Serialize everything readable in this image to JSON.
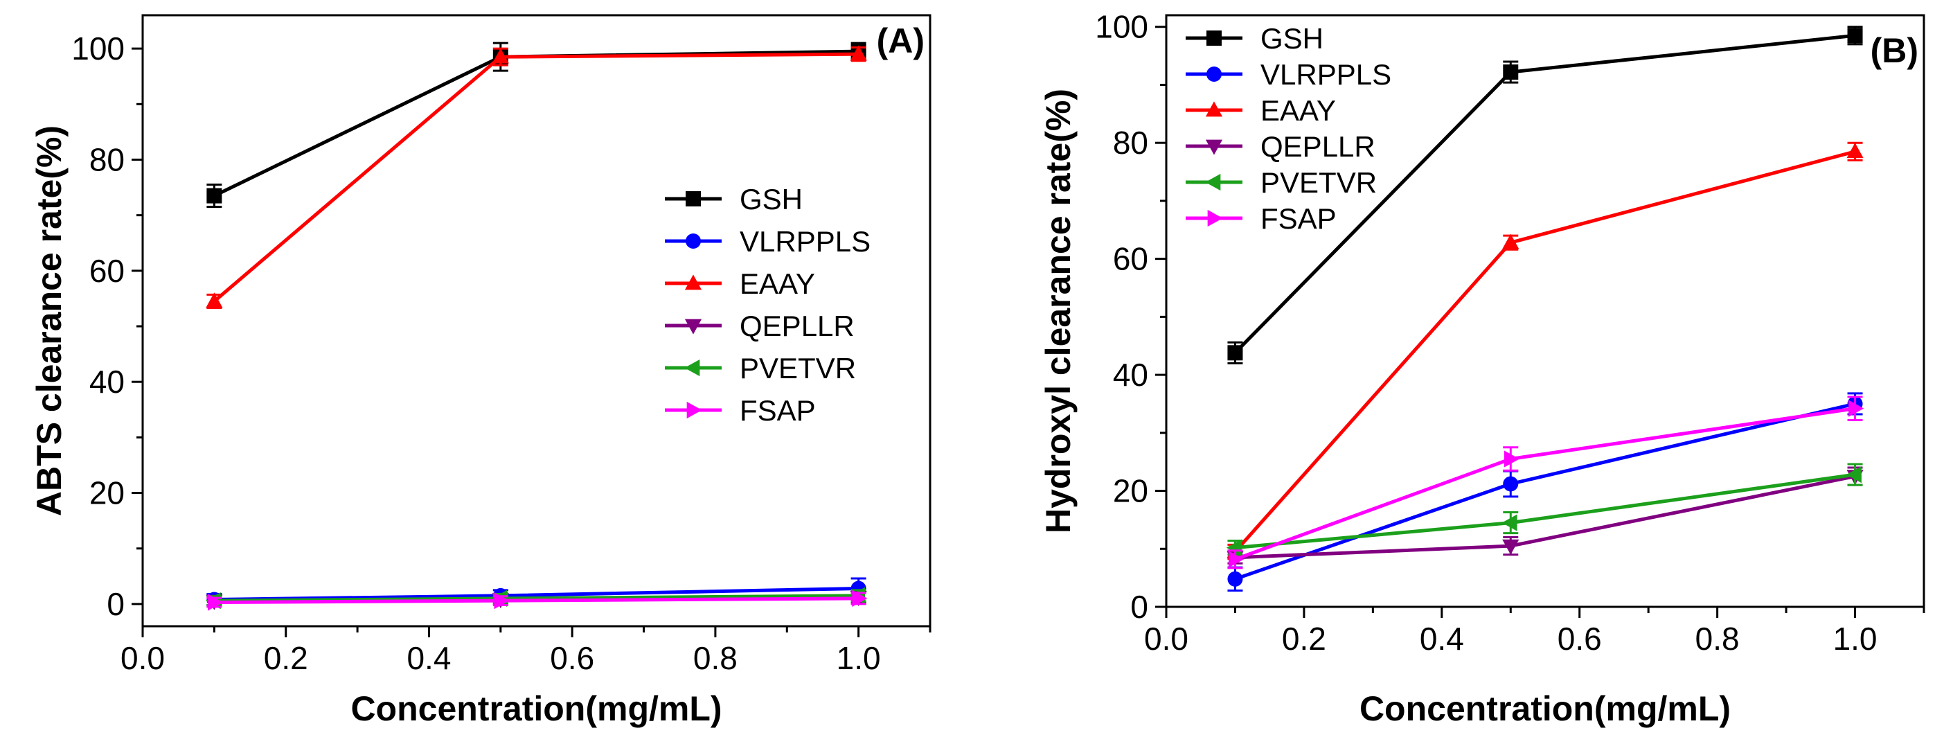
{
  "chart_data": [
    {
      "type": "line",
      "panel_label": "(A)",
      "xlabel": "Concentration(mg/mL)",
      "ylabel": "ABTS clearance rate(%)",
      "xlim": [
        0.0,
        1.1
      ],
      "ylim": [
        -4,
        106
      ],
      "xticks": [
        0.0,
        0.2,
        0.4,
        0.6,
        0.8,
        1.0
      ],
      "xtick_labels": [
        "0.0",
        "0.2",
        "0.4",
        "0.6",
        "0.8",
        "1.0"
      ],
      "yticks": [
        0,
        20,
        40,
        60,
        80,
        100
      ],
      "ytick_labels": [
        "0",
        "20",
        "40",
        "60",
        "80",
        "100"
      ],
      "legend_position": "center-right",
      "x": [
        0.1,
        0.5,
        1.0
      ],
      "series": [
        {
          "name": "GSH",
          "color": "#000000",
          "marker": "square",
          "values": [
            73.5,
            98.5,
            99.5
          ],
          "errors": [
            2.0,
            2.5,
            1.5
          ]
        },
        {
          "name": "VLRPPLS",
          "color": "#0000ff",
          "marker": "circle",
          "values": [
            0.8,
            1.5,
            2.8
          ],
          "errors": [
            1.0,
            1.0,
            1.8
          ]
        },
        {
          "name": "EAAY",
          "color": "#ff0000",
          "marker": "triangle-up",
          "values": [
            54.5,
            98.5,
            99.0
          ],
          "errors": [
            1.2,
            1.5,
            1.2
          ]
        },
        {
          "name": "QEPLLR",
          "color": "#800080",
          "marker": "triangle-down",
          "values": [
            0.5,
            0.8,
            1.2
          ],
          "errors": [
            0.8,
            0.8,
            1.0
          ]
        },
        {
          "name": "PVETVR",
          "color": "#1ca01c",
          "marker": "triangle-left",
          "values": [
            0.6,
            1.0,
            1.5
          ],
          "errors": [
            0.8,
            0.8,
            1.0
          ]
        },
        {
          "name": "FSAP",
          "color": "#ff00ff",
          "marker": "triangle-right",
          "values": [
            0.3,
            0.6,
            1.0
          ],
          "errors": [
            0.8,
            0.8,
            1.0
          ]
        }
      ]
    },
    {
      "type": "line",
      "panel_label": "(B)",
      "xlabel": "Concentration(mg/mL)",
      "ylabel": "Hydroxyl clearance rate(%)",
      "xlim": [
        0.0,
        1.1
      ],
      "ylim": [
        0,
        102
      ],
      "xticks": [
        0.0,
        0.2,
        0.4,
        0.6,
        0.8,
        1.0
      ],
      "xtick_labels": [
        "0.0",
        "0.2",
        "0.4",
        "0.6",
        "0.8",
        "1.0"
      ],
      "yticks": [
        0,
        20,
        40,
        60,
        80,
        100
      ],
      "ytick_labels": [
        "0",
        "20",
        "40",
        "60",
        "80",
        "100"
      ],
      "legend_position": "top-left",
      "x": [
        0.1,
        0.5,
        1.0
      ],
      "series": [
        {
          "name": "GSH",
          "color": "#000000",
          "marker": "square",
          "values": [
            43.8,
            92.2,
            98.5
          ],
          "errors": [
            1.8,
            1.8,
            1.5
          ]
        },
        {
          "name": "VLRPPLS",
          "color": "#0000ff",
          "marker": "circle",
          "values": [
            4.8,
            21.2,
            35.0
          ],
          "errors": [
            2.0,
            2.2,
            1.8
          ]
        },
        {
          "name": "EAAY",
          "color": "#ff0000",
          "marker": "triangle-up",
          "values": [
            9.5,
            62.8,
            78.5
          ],
          "errors": [
            1.2,
            1.2,
            1.5
          ]
        },
        {
          "name": "QEPLLR",
          "color": "#800080",
          "marker": "triangle-down",
          "values": [
            8.5,
            10.5,
            22.5
          ],
          "errors": [
            1.0,
            1.5,
            1.5
          ]
        },
        {
          "name": "PVETVR",
          "color": "#1ca01c",
          "marker": "triangle-left",
          "values": [
            10.2,
            14.5,
            22.8
          ],
          "errors": [
            1.2,
            1.8,
            1.8
          ]
        },
        {
          "name": "FSAP",
          "color": "#ff00ff",
          "marker": "triangle-right",
          "values": [
            8.2,
            25.5,
            34.2
          ],
          "errors": [
            1.5,
            2.0,
            2.0
          ]
        }
      ]
    }
  ]
}
